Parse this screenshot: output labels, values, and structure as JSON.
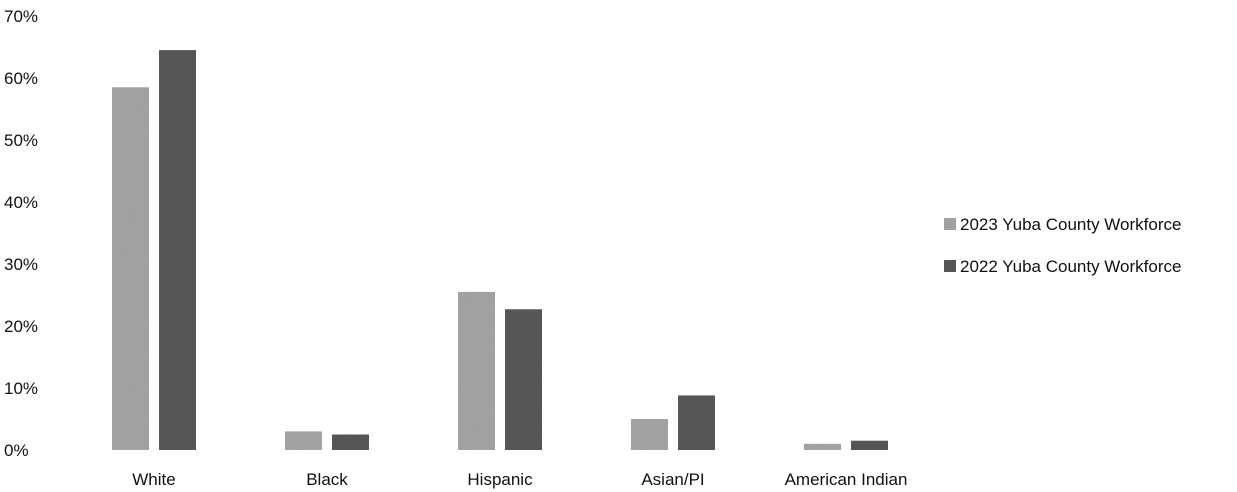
{
  "chart_data": {
    "type": "bar",
    "title": "",
    "xlabel": "",
    "ylabel": "",
    "categories": [
      "White",
      "Black",
      "Hispanic",
      "Asian/PI",
      "American Indian"
    ],
    "series": [
      {
        "name": "2023 Yuba County Workforce",
        "values": [
          58.5,
          3,
          25.5,
          5,
          1
        ],
        "color": "#a8a8a8"
      },
      {
        "name": "2022 Yuba County Workforce",
        "values": [
          64.5,
          2.5,
          22.7,
          8.8,
          1.5
        ],
        "color": "#5a5a5a"
      }
    ],
    "ylim": [
      0,
      70
    ],
    "yticks": [
      0,
      10,
      20,
      30,
      40,
      50,
      60,
      70
    ],
    "ytick_labels": [
      "0%",
      "10%",
      "20%",
      "30%",
      "40%",
      "50%",
      "60%",
      "70%"
    ],
    "grid": false,
    "legend_position": "right"
  }
}
